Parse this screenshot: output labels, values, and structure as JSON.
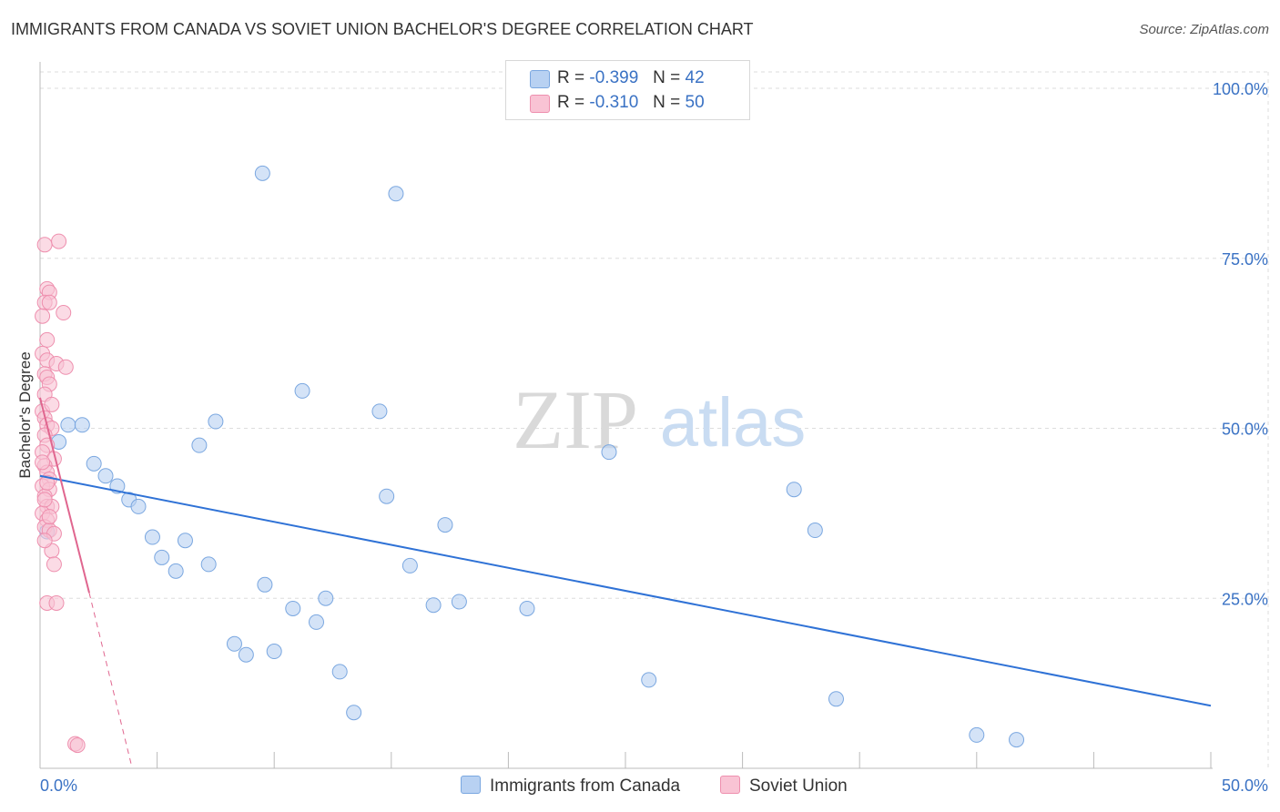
{
  "title": "IMMIGRANTS FROM CANADA VS SOVIET UNION BACHELOR'S DEGREE CORRELATION CHART",
  "source": "Source: ZipAtlas.com",
  "watermark": {
    "zip": "ZIP",
    "atlas": "atlas"
  },
  "legend": {
    "rows": [
      {
        "r_label": "R =",
        "r_value": "-0.399",
        "n_label": "N =",
        "n_value": "42",
        "color": "#b8d1f2",
        "border": "#7aa7e0"
      },
      {
        "r_label": "R =",
        "r_value": "-0.310",
        "n_label": "N =",
        "n_value": "50",
        "color": "#f9c3d4",
        "border": "#ee8fae"
      }
    ]
  },
  "colors": {
    "blue_fill": "#b8d1f2",
    "blue_stroke": "#7aa7e0",
    "blue_line": "#2f72d6",
    "pink_fill": "#f9c3d4",
    "pink_stroke": "#ee8fae",
    "pink_line": "#e0668f",
    "axis_label": "#3a72c4",
    "grid": "#dddddd"
  },
  "chart_data": {
    "type": "scatter",
    "title": "IMMIGRANTS FROM CANADA VS SOVIET UNION BACHELOR'S DEGREE CORRELATION CHART",
    "xlabel": "",
    "ylabel": "Bachelor's Degree",
    "xlim": [
      0,
      50
    ],
    "ylim": [
      0,
      100
    ],
    "x_tick_labels": [
      "0.0%",
      "50.0%"
    ],
    "y_tick_labels": [
      "100.0%",
      "75.0%",
      "50.0%",
      "25.0%"
    ],
    "y_tick_values": [
      100,
      75,
      50,
      25
    ],
    "grid": true,
    "series": [
      {
        "name": "Immigrants from Canada",
        "points": [
          [
            0.3,
            34.8
          ],
          [
            0.8,
            48.0
          ],
          [
            1.2,
            50.5
          ],
          [
            1.8,
            50.5
          ],
          [
            2.3,
            44.8
          ],
          [
            2.8,
            43.0
          ],
          [
            3.3,
            41.5
          ],
          [
            3.8,
            39.5
          ],
          [
            4.2,
            38.5
          ],
          [
            4.8,
            34.0
          ],
          [
            5.2,
            31.0
          ],
          [
            5.8,
            29.0
          ],
          [
            6.2,
            33.5
          ],
          [
            6.8,
            47.5
          ],
          [
            7.2,
            30.0
          ],
          [
            7.5,
            51.0
          ],
          [
            8.3,
            18.3
          ],
          [
            8.8,
            16.7
          ],
          [
            9.5,
            87.5
          ],
          [
            9.6,
            27.0
          ],
          [
            10.0,
            17.2
          ],
          [
            10.8,
            23.5
          ],
          [
            11.2,
            55.5
          ],
          [
            11.8,
            21.5
          ],
          [
            12.2,
            25.0
          ],
          [
            12.8,
            14.2
          ],
          [
            13.4,
            8.2
          ],
          [
            14.5,
            52.5
          ],
          [
            14.8,
            40.0
          ],
          [
            15.2,
            84.5
          ],
          [
            15.8,
            29.8
          ],
          [
            16.8,
            24.0
          ],
          [
            17.3,
            35.8
          ],
          [
            17.9,
            24.5
          ],
          [
            20.8,
            23.5
          ],
          [
            24.3,
            46.5
          ],
          [
            26.0,
            13.0
          ],
          [
            32.2,
            41.0
          ],
          [
            33.1,
            35.0
          ],
          [
            34.0,
            10.2
          ],
          [
            40.0,
            4.9
          ],
          [
            41.7,
            4.2
          ]
        ]
      },
      {
        "name": "Soviet Union",
        "points": [
          [
            0.2,
            77.0
          ],
          [
            0.8,
            77.5
          ],
          [
            0.3,
            70.5
          ],
          [
            0.4,
            70.0
          ],
          [
            0.2,
            68.5
          ],
          [
            0.4,
            68.5
          ],
          [
            0.1,
            66.5
          ],
          [
            1.0,
            67.0
          ],
          [
            0.3,
            63.0
          ],
          [
            0.1,
            61.0
          ],
          [
            0.3,
            60.0
          ],
          [
            0.7,
            59.5
          ],
          [
            1.1,
            59.0
          ],
          [
            0.2,
            58.0
          ],
          [
            0.3,
            57.5
          ],
          [
            0.4,
            56.5
          ],
          [
            0.1,
            52.5
          ],
          [
            0.2,
            51.5
          ],
          [
            0.3,
            50.5
          ],
          [
            0.5,
            50.0
          ],
          [
            0.2,
            49.0
          ],
          [
            0.3,
            47.5
          ],
          [
            0.1,
            46.5
          ],
          [
            0.6,
            45.5
          ],
          [
            0.2,
            44.5
          ],
          [
            0.3,
            43.5
          ],
          [
            0.4,
            42.5
          ],
          [
            0.1,
            41.5
          ],
          [
            0.4,
            41.0
          ],
          [
            0.2,
            40.0
          ],
          [
            0.3,
            38.5
          ],
          [
            0.5,
            38.5
          ],
          [
            0.1,
            37.5
          ],
          [
            0.3,
            36.5
          ],
          [
            0.2,
            35.5
          ],
          [
            0.4,
            35.0
          ],
          [
            0.6,
            34.5
          ],
          [
            0.5,
            32.0
          ],
          [
            0.3,
            24.3
          ],
          [
            0.7,
            24.3
          ],
          [
            1.5,
            3.6
          ],
          [
            1.6,
            3.4
          ],
          [
            0.2,
            55.0
          ],
          [
            0.5,
            53.5
          ],
          [
            0.1,
            45.0
          ],
          [
            0.3,
            42.0
          ],
          [
            0.2,
            39.5
          ],
          [
            0.4,
            37.0
          ],
          [
            0.2,
            33.5
          ],
          [
            0.6,
            30.0
          ]
        ]
      }
    ],
    "trend_lines": [
      {
        "series": "Immigrants from Canada",
        "x0": 0,
        "y0": 43.0,
        "x1": 50,
        "y1": 9.2
      },
      {
        "series": "Soviet Union",
        "x0": 0,
        "y0": 54.5,
        "x1": 2.1,
        "y1": 25.8,
        "dashed_extension": {
          "x0": 2.1,
          "y0": 25.8,
          "x1": 3.9,
          "y1": 0.5
        }
      }
    ],
    "legend_position": "top-center"
  }
}
